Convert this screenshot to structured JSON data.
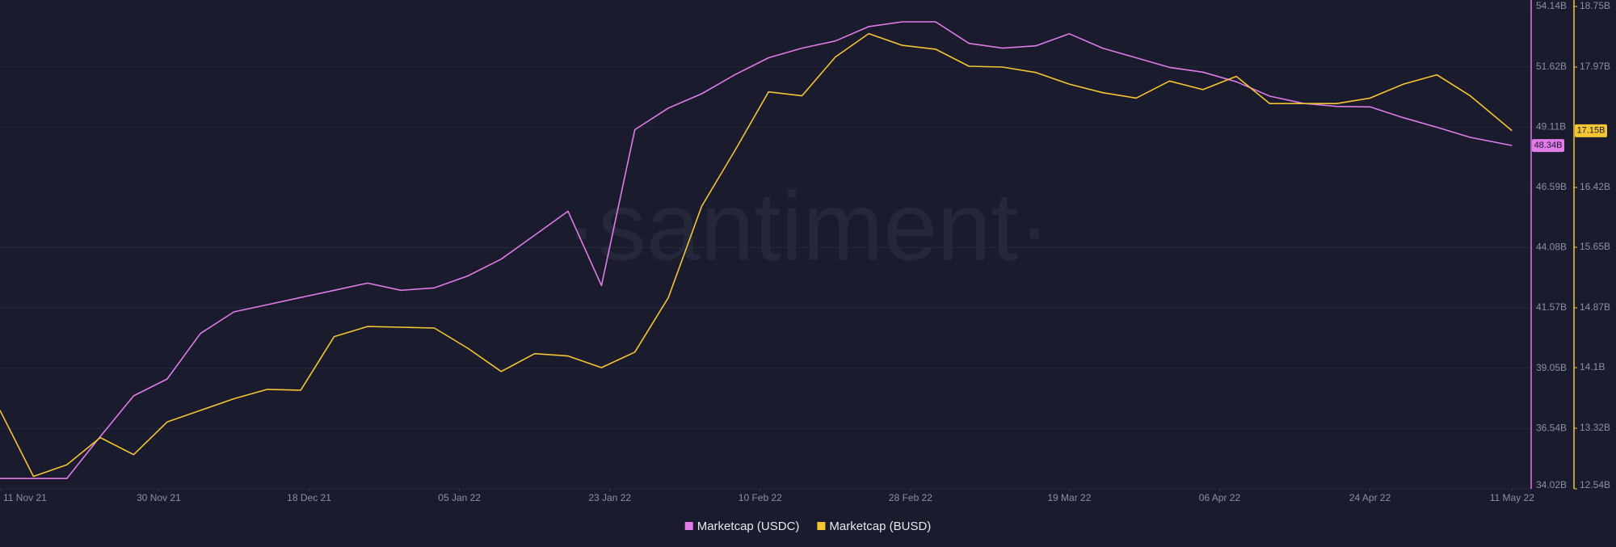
{
  "chart_data": {
    "type": "line",
    "watermark": "·santiment·",
    "x": [
      "2021-11-11",
      "2021-11-15",
      "2021-11-19",
      "2021-11-23",
      "2021-11-27",
      "2021-12-01",
      "2021-12-05",
      "2021-12-09",
      "2021-12-13",
      "2021-12-17",
      "2021-12-21",
      "2021-12-25",
      "2021-12-29",
      "2022-01-02",
      "2022-01-06",
      "2022-01-10",
      "2022-01-14",
      "2022-01-18",
      "2022-01-22",
      "2022-01-26",
      "2022-01-30",
      "2022-02-03",
      "2022-02-07",
      "2022-02-11",
      "2022-02-15",
      "2022-02-19",
      "2022-02-23",
      "2022-02-27",
      "2022-03-03",
      "2022-03-07",
      "2022-03-11",
      "2022-03-15",
      "2022-03-19",
      "2022-03-23",
      "2022-03-27",
      "2022-03-31",
      "2022-04-04",
      "2022-04-08",
      "2022-04-12",
      "2022-04-16",
      "2022-04-20",
      "2022-04-24",
      "2022-04-28",
      "2022-05-02",
      "2022-05-06",
      "2022-05-11"
    ],
    "xlim": [
      "2021-11-11",
      "2022-05-13"
    ],
    "xticks": [
      {
        "value": "2021-11-11",
        "label": "11 Nov 21"
      },
      {
        "value": "2021-11-30",
        "label": "30 Nov 21"
      },
      {
        "value": "2021-12-18",
        "label": "18 Dec 21"
      },
      {
        "value": "2022-01-05",
        "label": "05 Jan 22"
      },
      {
        "value": "2022-01-23",
        "label": "23 Jan 22"
      },
      {
        "value": "2022-02-10",
        "label": "10 Feb 22"
      },
      {
        "value": "2022-02-28",
        "label": "28 Feb 22"
      },
      {
        "value": "2022-03-19",
        "label": "19 Mar 22"
      },
      {
        "value": "2022-04-06",
        "label": "06 Apr 22"
      },
      {
        "value": "2022-04-24",
        "label": "24 Apr 22"
      },
      {
        "value": "2022-05-11",
        "label": "11 May 22"
      }
    ],
    "ylim": [
      34.02,
      54.14
    ],
    "yticks": [
      {
        "value": 34.02,
        "label": "34.02B"
      },
      {
        "value": 36.54,
        "label": "36.54B"
      },
      {
        "value": 39.05,
        "label": "39.05B"
      },
      {
        "value": 41.57,
        "label": "41.57B"
      },
      {
        "value": 44.08,
        "label": "44.08B"
      },
      {
        "value": 46.59,
        "label": "46.59B"
      },
      {
        "value": 49.11,
        "label": "49.11B"
      },
      {
        "value": 51.62,
        "label": "51.62B"
      },
      {
        "value": 54.14,
        "label": "54.14B"
      }
    ],
    "y2lim": [
      12.54,
      18.75
    ],
    "y2ticks": [
      {
        "value": 12.54,
        "label": "12.54B"
      },
      {
        "value": 13.32,
        "label": "13.32B"
      },
      {
        "value": 14.1,
        "label": "14.1B"
      },
      {
        "value": 14.87,
        "label": "14.87B"
      },
      {
        "value": 15.65,
        "label": "15.65B"
      },
      {
        "value": 16.42,
        "label": "16.42B"
      },
      {
        "value": 17.97,
        "label": "17.97B"
      },
      {
        "value": 18.75,
        "label": "18.75B"
      }
    ],
    "grid": true,
    "legend": "bottom",
    "series": [
      {
        "name": "Marketcap (USDC)",
        "color": "#e07be8",
        "axis": "y",
        "values": [
          34.45,
          34.45,
          34.45,
          36.2,
          37.9,
          38.6,
          40.5,
          41.4,
          41.7,
          42.0,
          42.3,
          42.6,
          42.3,
          42.4,
          42.9,
          43.6,
          44.6,
          45.6,
          42.5,
          49.0,
          49.9,
          50.5,
          51.3,
          52.0,
          52.4,
          52.7,
          53.3,
          53.5,
          53.5,
          52.6,
          52.4,
          52.5,
          53.0,
          52.4,
          52.0,
          51.6,
          51.4,
          51.0,
          50.4,
          50.1,
          49.97,
          49.95,
          49.5,
          49.1,
          48.68,
          48.34
        ],
        "value_labels": [
          null,
          null,
          null,
          null,
          null,
          null,
          null,
          null,
          null,
          null,
          null,
          null,
          null,
          null,
          null,
          null,
          null,
          null,
          null,
          null,
          null,
          null,
          null,
          null,
          null,
          null,
          null,
          null,
          null,
          null,
          null,
          null,
          null,
          null,
          null,
          null,
          null,
          null,
          null,
          null,
          null,
          null,
          null,
          null,
          null,
          "48.34B"
        ]
      },
      {
        "name": "Marketcap (BUSD)",
        "color": "#f4c534",
        "axis": "y2",
        "values": [
          13.55,
          12.7,
          12.85,
          13.2,
          12.98,
          13.4,
          13.55,
          13.7,
          13.82,
          13.81,
          14.5,
          14.63,
          14.62,
          14.61,
          14.35,
          14.05,
          14.28,
          14.25,
          14.1,
          14.3,
          15.0,
          16.18,
          16.9,
          17.65,
          17.6,
          18.1,
          18.4,
          18.25,
          18.2,
          17.98,
          17.97,
          17.9,
          17.75,
          17.64,
          17.57,
          17.79,
          17.68,
          17.85,
          17.5,
          17.5,
          17.5,
          17.57,
          17.75,
          17.87,
          17.6,
          17.15
        ],
        "value_labels": [
          null,
          null,
          null,
          null,
          null,
          null,
          null,
          null,
          null,
          null,
          null,
          null,
          null,
          null,
          null,
          null,
          null,
          null,
          null,
          null,
          null,
          null,
          null,
          null,
          null,
          null,
          null,
          null,
          null,
          null,
          null,
          null,
          null,
          null,
          null,
          null,
          null,
          null,
          null,
          null,
          null,
          null,
          null,
          null,
          null,
          "17.15B"
        ]
      }
    ]
  }
}
